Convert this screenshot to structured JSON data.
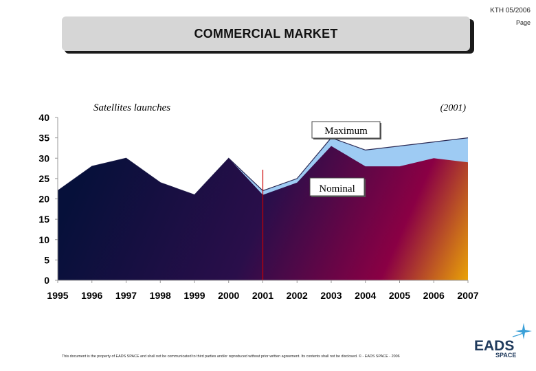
{
  "header": {
    "reference": "KTH 05/2006",
    "page_label": "Page"
  },
  "slide": {
    "title": "COMMERCIAL MARKET"
  },
  "footer": {
    "disclaimer": "This document is the property of EADS SPACE and shall not be communicated to third parties and/or reproduced without prior written agreement. Its contents shall not be disclosed. © - EADS SPACE - 2006"
  },
  "logo": {
    "brand": "EADS",
    "sub": "SPACE",
    "icon": "star-icon"
  },
  "colors": {
    "maximum_fill": "#9ecbf3",
    "nominal_dark": "#06103a",
    "nominal_mid": "#8a0044",
    "nominal_bright": "#f4b400",
    "marker_line": "#cc0000"
  },
  "chart_data": {
    "type": "area",
    "title": "Satellites launches",
    "subtitle": "(2001)",
    "x": [
      "1995",
      "1996",
      "1997",
      "1998",
      "1999",
      "2000",
      "2001",
      "2002",
      "2003",
      "2004",
      "2005",
      "2006",
      "2007"
    ],
    "ylim": [
      0,
      40
    ],
    "yticks": [
      0,
      5,
      10,
      15,
      20,
      25,
      30,
      35,
      40
    ],
    "grid": false,
    "marker_year": "2001",
    "series": [
      {
        "name": "Maximum",
        "values": [
          22,
          28,
          30,
          24,
          21,
          30,
          22,
          25,
          35,
          32,
          33,
          34,
          35
        ]
      },
      {
        "name": "Nominal",
        "values": [
          22,
          28,
          30,
          24,
          21,
          30,
          21,
          24,
          33,
          28,
          28,
          30,
          29
        ]
      }
    ]
  }
}
